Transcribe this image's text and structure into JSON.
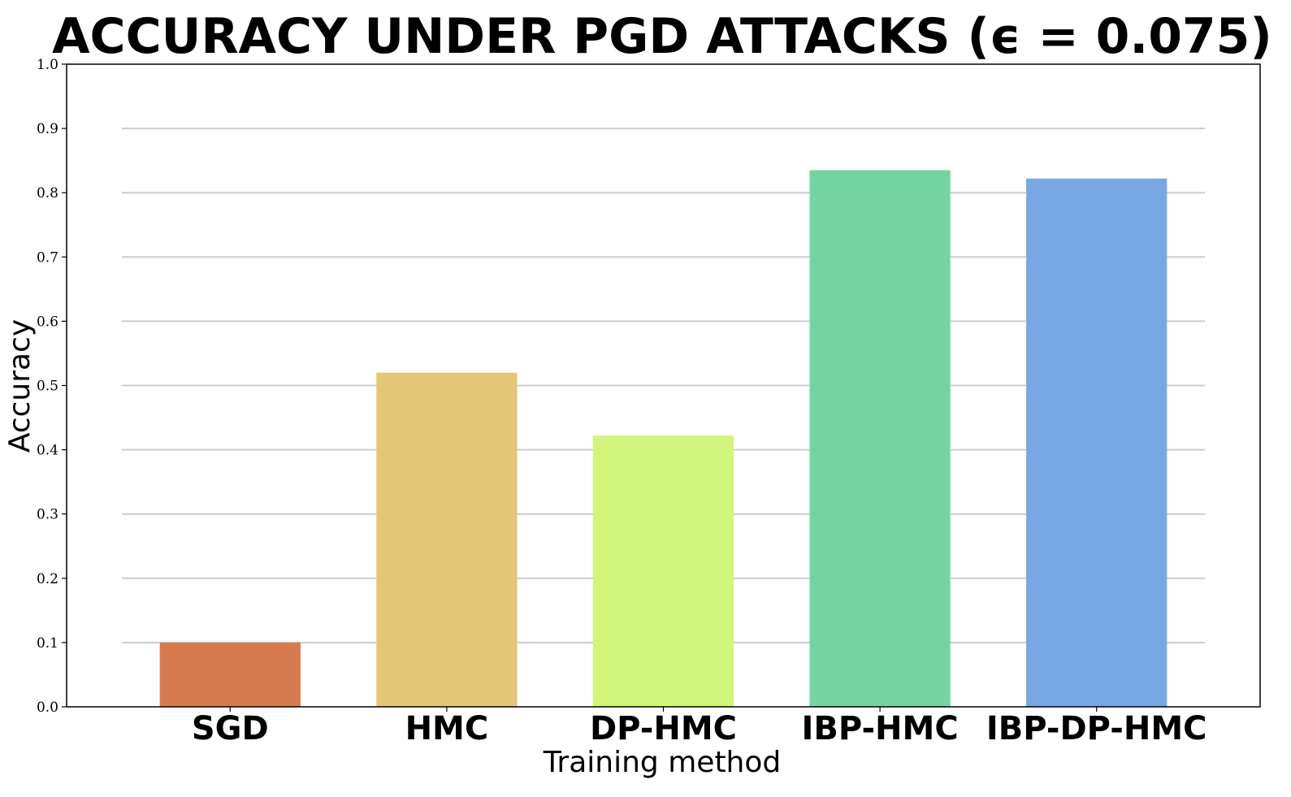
{
  "chart_data": {
    "type": "bar",
    "title": "ACCURACY UNDER PGD ATTACKS (ϵ = 0.075)",
    "xlabel": "Training method",
    "ylabel": "Accuracy",
    "categories": [
      "SGD",
      "HMC",
      "DP-HMC",
      "IBP-HMC",
      "IBP-DP-HMC"
    ],
    "values": [
      0.1,
      0.52,
      0.422,
      0.835,
      0.822
    ],
    "colors": [
      "#d67b50",
      "#e3c777",
      "#d1f57a",
      "#74d4a1",
      "#77a8e3"
    ],
    "ylim": [
      0,
      1.0
    ],
    "yticks": [
      "0.0",
      "0.1",
      "0.2",
      "0.3",
      "0.4",
      "0.5",
      "0.6",
      "0.7",
      "0.8",
      "0.9",
      "1.0"
    ],
    "grid": "horizontal",
    "gridline_color": "#cccccc"
  }
}
